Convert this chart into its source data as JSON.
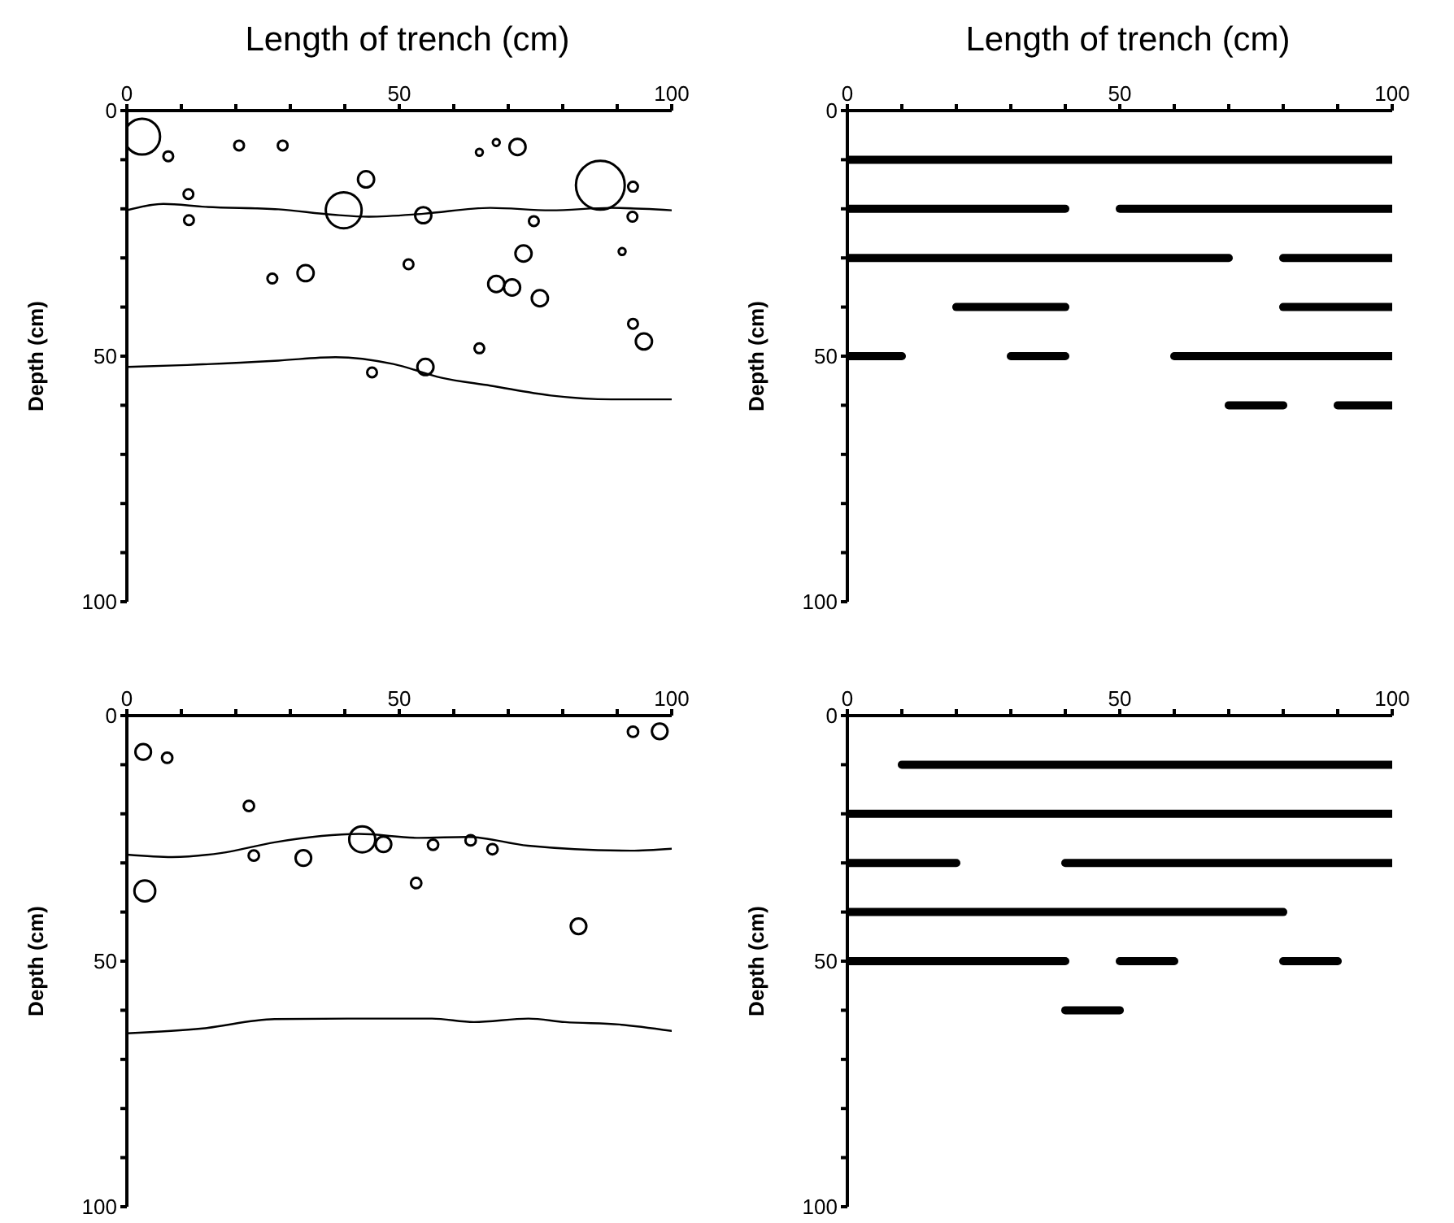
{
  "chart_data": [
    {
      "type": "bubble",
      "xlabel": "Length of trench (cm)",
      "ylabel": "Depth (cm)",
      "xlim": [
        0,
        100
      ],
      "xticks": [
        0,
        {
          "value": 10,
          "label": null
        },
        {
          "value": 20,
          "label": null
        },
        {
          "value": 30,
          "label": null
        },
        {
          "value": 40,
          "label": null
        },
        50,
        {
          "value": 60,
          "label": null
        },
        {
          "value": 70,
          "label": null
        },
        {
          "value": 80,
          "label": null
        },
        {
          "value": 90,
          "label": null
        },
        100
      ],
      "ylim": [
        100,
        0
      ],
      "yticks": [
        0,
        {
          "value": 10,
          "label": null
        },
        {
          "value": 20,
          "label": null
        },
        {
          "value": 30,
          "label": null
        },
        {
          "value": 40,
          "label": null
        },
        50,
        {
          "value": 60,
          "label": null
        },
        {
          "value": 70,
          "label": null
        },
        {
          "value": 80,
          "label": null
        },
        {
          "value": 90,
          "label": null
        },
        100
      ],
      "series": [
        {
          "type": "bubble",
          "marker": "circle",
          "color": "#000000",
          "x": [
            2.8,
            7.6,
            20.6,
            28.6,
            64.7,
            67.8,
            71.7,
            43.9,
            86.9,
            92.9,
            11.3,
            11.4,
            39.8,
            54.4,
            74.7,
            92.8,
            72.8,
            90.9,
            51.7,
            26.7,
            32.8,
            67.8,
            70.7,
            75.8,
            92.9,
            94.9,
            64.7,
            45,
            54.8
          ],
          "values": [
            5.3,
            9.3,
            7.1,
            7.1,
            8.5,
            6.5,
            7.4,
            14,
            15.2,
            15.5,
            17,
            22.3,
            20.3,
            21.3,
            22.5,
            21.6,
            29.1,
            28.7,
            31.3,
            34.2,
            33.1,
            35.3,
            36,
            38.2,
            43.4,
            47,
            48.4,
            53.3,
            52.2
          ],
          "sizes": [
            0.54,
            0.04,
            0.04,
            0.04,
            0.02,
            0.02,
            0.11,
            0.11,
            1,
            0.04,
            0.04,
            0.04,
            0.54,
            0.11,
            0.04,
            0.04,
            0.11,
            0.02,
            0.04,
            0.04,
            0.11,
            0.11,
            0.11,
            0.11,
            0.04,
            0.11,
            0.04,
            0.04,
            0.11
          ]
        },
        {
          "type": "line",
          "color": "#000000",
          "x": [
            0,
            6.7,
            14.4,
            27.8,
            37.8,
            44.4,
            54.4,
            66.7,
            77.8,
            88.9,
            100
          ],
          "values": [
            20.3,
            19,
            19.6,
            20.1,
            21.2,
            21.6,
            21,
            19.8,
            20.3,
            19.8,
            20.3
          ]
        },
        {
          "type": "line",
          "color": "#000000",
          "x": [
            0,
            11.1,
            27.8,
            38.3,
            48.9,
            57.8,
            66.7,
            77.8,
            88.9,
            100
          ],
          "values": [
            52.2,
            51.8,
            50.9,
            50.2,
            51.6,
            54.4,
            56,
            58,
            58.8,
            58.8
          ]
        }
      ]
    },
    {
      "type": "line",
      "xlabel": "Length of trench (cm)",
      "ylabel": "Depth (cm)",
      "xlim": [
        0,
        100
      ],
      "xticks": [
        0,
        {
          "value": 10,
          "label": null
        },
        {
          "value": 20,
          "label": null
        },
        {
          "value": 30,
          "label": null
        },
        {
          "value": 40,
          "label": null
        },
        50,
        {
          "value": 60,
          "label": null
        },
        {
          "value": 70,
          "label": null
        },
        {
          "value": 80,
          "label": null
        },
        {
          "value": 90,
          "label": null
        },
        100
      ],
      "ylim": [
        100,
        0
      ],
      "yticks": [
        0,
        {
          "value": 10,
          "label": null
        },
        {
          "value": 20,
          "label": null
        },
        {
          "value": 30,
          "label": null
        },
        {
          "value": 40,
          "label": null
        },
        50,
        {
          "value": 60,
          "label": null
        },
        {
          "value": 70,
          "label": null
        },
        {
          "value": 80,
          "label": null
        },
        {
          "value": 90,
          "label": null
        },
        100
      ],
      "series": [
        {
          "color": "#000000",
          "x": [
            0,
            100
          ],
          "values": [
            10,
            10
          ]
        },
        {
          "color": "#000000",
          "x": [
            0,
            40
          ],
          "values": [
            20,
            20
          ]
        },
        {
          "color": "#000000",
          "x": [
            50,
            100
          ],
          "values": [
            20,
            20
          ]
        },
        {
          "color": "#000000",
          "x": [
            0,
            70
          ],
          "values": [
            30,
            30
          ]
        },
        {
          "color": "#000000",
          "x": [
            80,
            100
          ],
          "values": [
            30,
            30
          ]
        },
        {
          "color": "#000000",
          "x": [
            20,
            40
          ],
          "values": [
            40,
            40
          ]
        },
        {
          "color": "#000000",
          "x": [
            80,
            100
          ],
          "values": [
            40,
            40
          ]
        },
        {
          "color": "#000000",
          "x": [
            0,
            10
          ],
          "values": [
            50,
            50
          ]
        },
        {
          "color": "#000000",
          "x": [
            30,
            40
          ],
          "values": [
            50,
            50
          ]
        },
        {
          "color": "#000000",
          "x": [
            60,
            100
          ],
          "values": [
            50,
            50
          ]
        },
        {
          "color": "#000000",
          "x": [
            70,
            80
          ],
          "values": [
            60,
            60
          ]
        },
        {
          "color": "#000000",
          "x": [
            90,
            100
          ],
          "values": [
            60,
            60
          ]
        }
      ]
    },
    {
      "type": "bubble",
      "ylabel": "Depth (cm)",
      "xlim": [
        0,
        100
      ],
      "xticks": [
        0,
        {
          "value": 10,
          "label": null
        },
        {
          "value": 20,
          "label": null
        },
        {
          "value": 30,
          "label": null
        },
        {
          "value": 40,
          "label": null
        },
        50,
        {
          "value": 60,
          "label": null
        },
        {
          "value": 70,
          "label": null
        },
        {
          "value": 80,
          "label": null
        },
        {
          "value": 90,
          "label": null
        },
        100
      ],
      "ylim": [
        100,
        0
      ],
      "yticks": [
        0,
        {
          "value": 10,
          "label": null
        },
        {
          "value": 20,
          "label": null
        },
        {
          "value": 30,
          "label": null
        },
        {
          "value": 40,
          "label": null
        },
        50,
        {
          "value": 60,
          "label": null
        },
        {
          "value": 70,
          "label": null
        },
        {
          "value": 80,
          "label": null
        },
        {
          "value": 90,
          "label": null
        },
        100
      ],
      "series": [
        {
          "type": "bubble",
          "marker": "circle",
          "color": "#000000",
          "x": [
            3,
            7.4,
            92.9,
            97.8,
            22.4,
            23.3,
            32.4,
            43.2,
            47.1,
            56.2,
            63.1,
            67.1,
            3.3,
            53.1,
            82.9
          ],
          "values": [
            7.4,
            8.6,
            3.3,
            3.2,
            18.4,
            28.5,
            29,
            25.2,
            26.2,
            26.3,
            25.4,
            27.2,
            35.7,
            34.1,
            42.9
          ],
          "sizes": [
            0.36,
            0.16,
            0.16,
            0.36,
            0.16,
            0.16,
            0.36,
            1,
            0.36,
            0.16,
            0.16,
            0.16,
            0.64,
            0.16,
            0.36
          ]
        },
        {
          "type": "line",
          "color": "#000000",
          "x": [
            0,
            8.3,
            17.2,
            27.1,
            42.6,
            53.7,
            62.6,
            73.6,
            92.5,
            100
          ],
          "values": [
            28.3,
            28.8,
            28,
            25.8,
            24.1,
            24.9,
            24.7,
            26.5,
            27.5,
            27.1
          ]
        },
        {
          "type": "line",
          "color": "#000000",
          "x": [
            0,
            13.9,
            27.1,
            40.5,
            56,
            63.7,
            73.7,
            80.4,
            90.4,
            100
          ],
          "values": [
            64.7,
            63.7,
            61.8,
            61.7,
            61.7,
            62.4,
            61.7,
            62.4,
            62.9,
            64.2
          ]
        }
      ]
    },
    {
      "type": "line",
      "ylabel": "Depth (cm)",
      "xlim": [
        0,
        100
      ],
      "xticks": [
        0,
        {
          "value": 10,
          "label": null
        },
        {
          "value": 20,
          "label": null
        },
        {
          "value": 30,
          "label": null
        },
        {
          "value": 40,
          "label": null
        },
        50,
        {
          "value": 60,
          "label": null
        },
        {
          "value": 70,
          "label": null
        },
        {
          "value": 80,
          "label": null
        },
        {
          "value": 90,
          "label": null
        },
        100
      ],
      "ylim": [
        100,
        0
      ],
      "yticks": [
        0,
        {
          "value": 10,
          "label": null
        },
        {
          "value": 20,
          "label": null
        },
        {
          "value": 30,
          "label": null
        },
        {
          "value": 40,
          "label": null
        },
        50,
        {
          "value": 60,
          "label": null
        },
        {
          "value": 70,
          "label": null
        },
        {
          "value": 80,
          "label": null
        },
        {
          "value": 90,
          "label": null
        },
        100
      ],
      "series": [
        {
          "color": "#000000",
          "x": [
            10,
            100
          ],
          "values": [
            10,
            10
          ]
        },
        {
          "color": "#000000",
          "x": [
            0,
            100
          ],
          "values": [
            20,
            20
          ]
        },
        {
          "color": "#000000",
          "x": [
            0,
            20
          ],
          "values": [
            30,
            30
          ]
        },
        {
          "color": "#000000",
          "x": [
            40,
            100
          ],
          "values": [
            30,
            30
          ]
        },
        {
          "color": "#000000",
          "x": [
            0,
            80
          ],
          "values": [
            40,
            40
          ]
        },
        {
          "color": "#000000",
          "x": [
            0,
            40
          ],
          "values": [
            50,
            50
          ]
        },
        {
          "color": "#000000",
          "x": [
            50,
            60
          ],
          "values": [
            50,
            50
          ]
        },
        {
          "color": "#000000",
          "x": [
            80,
            90
          ],
          "values": [
            50,
            50
          ]
        },
        {
          "color": "#000000",
          "x": [
            40,
            50
          ],
          "values": [
            60,
            60
          ]
        }
      ]
    }
  ]
}
